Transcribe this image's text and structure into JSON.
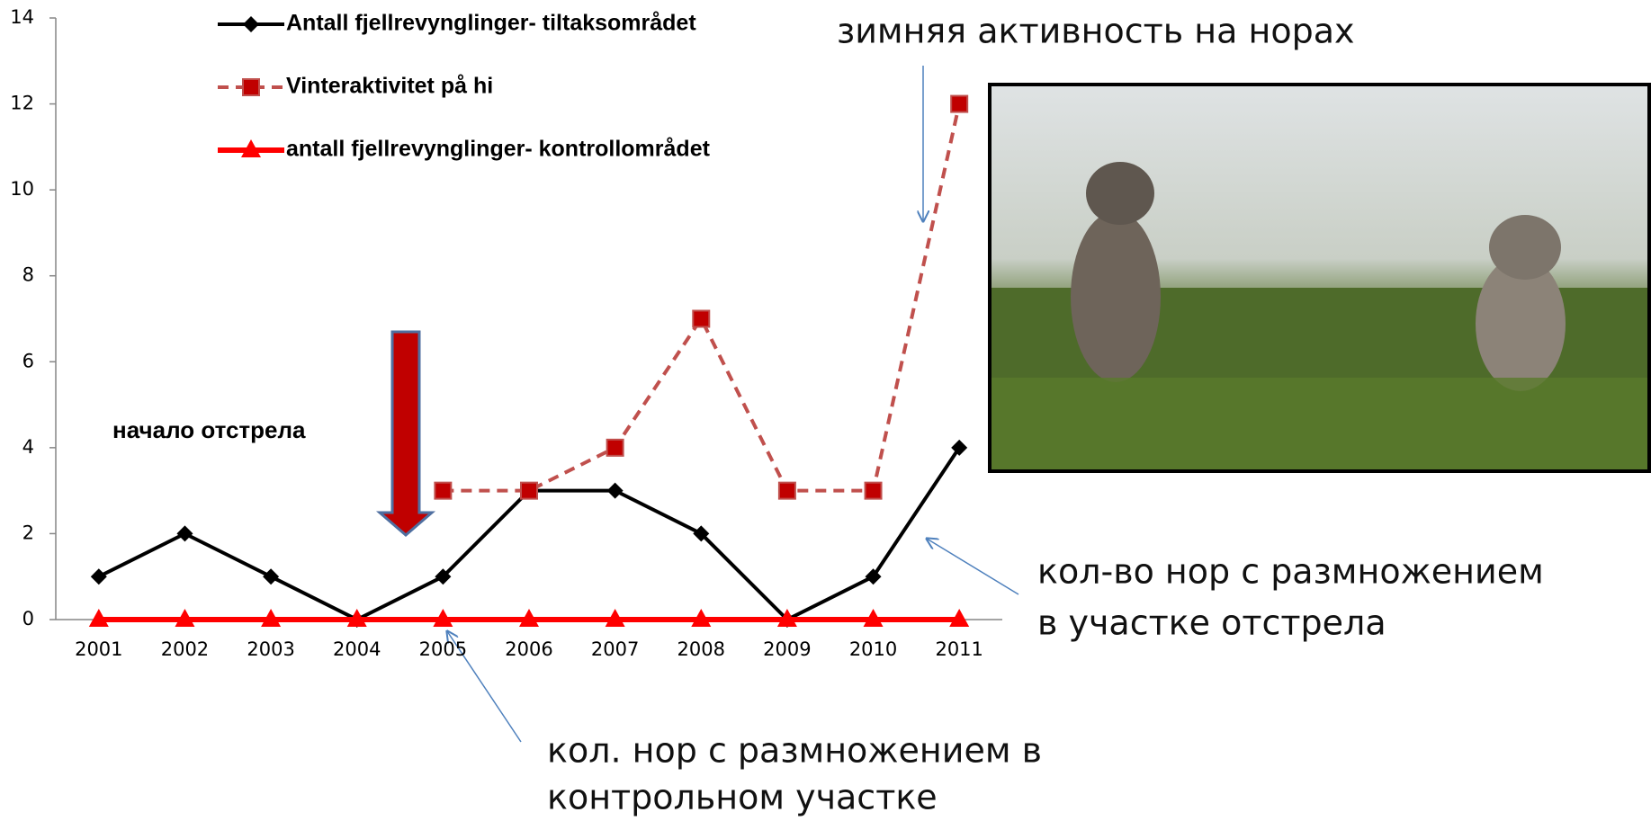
{
  "chart_data": {
    "type": "line",
    "categories": [
      "2001",
      "2002",
      "2003",
      "2004",
      "2005",
      "2006",
      "2007",
      "2008",
      "2009",
      "2010",
      "2011"
    ],
    "series": [
      {
        "name": "Antall fjellrevynglinger- tiltaksområdet",
        "color": "#000000",
        "marker": "diamond",
        "dashed": false,
        "values": [
          1,
          2,
          1,
          0,
          1,
          3,
          3,
          2,
          0,
          1,
          4
        ]
      },
      {
        "name": "Vinteraktivitet på hi",
        "color": "#c0504d",
        "marker": "square",
        "dashed": true,
        "values": [
          null,
          null,
          null,
          null,
          3,
          3,
          4,
          7,
          3,
          3,
          12
        ]
      },
      {
        "name": "antall fjellrevynglinger- kontrollområdet",
        "color": "#ff0000",
        "marker": "triangle",
        "dashed": false,
        "values": [
          0,
          0,
          0,
          0,
          0,
          0,
          0,
          0,
          0,
          0,
          0
        ]
      }
    ],
    "ylim": [
      0,
      14
    ],
    "yticks": [
      0,
      2,
      4,
      6,
      8,
      10,
      12,
      14
    ],
    "grid": false,
    "annotations": {
      "winter_activity": "зимняя активность на норах",
      "culling_start": "начало отстрела",
      "culled_area_dens": [
        "кол-во нор с размножением",
        "в участке отстрела"
      ],
      "control_area_dens": [
        "кол. нор с размножением в",
        "контрольном участке"
      ]
    }
  }
}
